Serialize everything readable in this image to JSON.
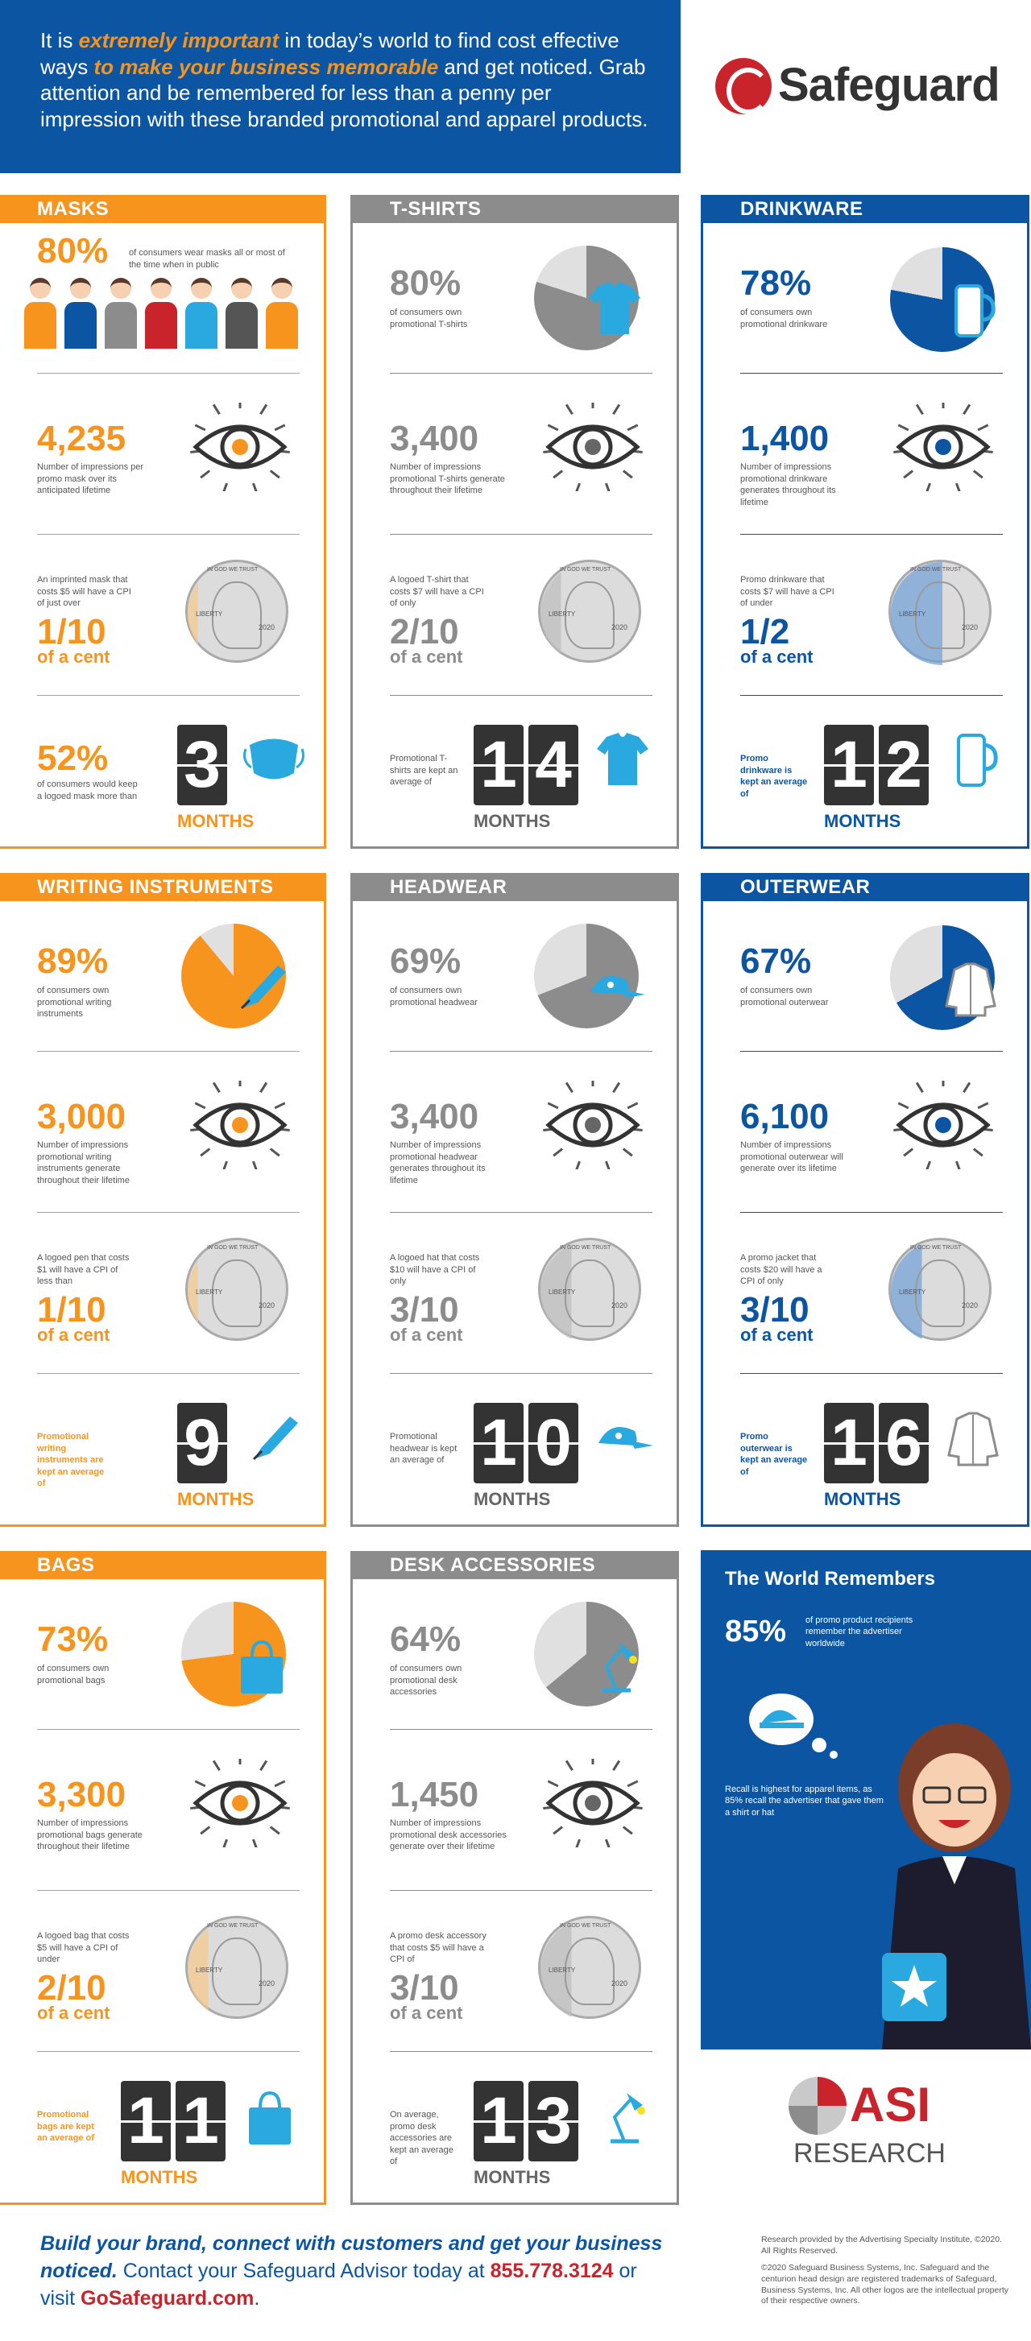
{
  "header": {
    "pre": "It is ",
    "em1": "extremely important",
    "mid1": " in today’s world to find cost effective ways ",
    "em2": "to make your business memorable",
    "post": " and get noticed. Grab attention and be remembered for less than a penny per impression with these branded promotional and apparel products."
  },
  "logo": {
    "name": "Safeguard"
  },
  "colors": {
    "orange": "#f7941d",
    "gray": "#8c8c8c",
    "blue": "#0b55a2",
    "cyan": "#29a9e0"
  },
  "panels": [
    {
      "title": "MASKS",
      "color": "#f7941d",
      "pct": "80%",
      "pct_text": "of consumers wear masks all or most of the time when in public",
      "impressions": "4,235",
      "imp_text": "Number of impressions per promo mask over its anticipated lifetime",
      "cost_text": "An imprinted mask that costs $5 will have a CPI of just over",
      "frac": "1/10",
      "frac_unit": "of a cent",
      "keep_text": "of consumers would keep a logoed mask more than",
      "keep_pct": "52%",
      "digits": [
        "3"
      ],
      "months": "MONTHS",
      "pct_value": 0.8,
      "penny_fill": 0.1,
      "icon": "mask-icon"
    },
    {
      "title": "T-SHIRTS",
      "color": "#8c8c8c",
      "pct": "80%",
      "pct_text": "of consumers own promotional T-shirts",
      "impressions": "3,400",
      "imp_text": "Number of impressions promotional T-shirts generate throughout their lifetime",
      "cost_text": "A logoed T-shirt that costs $7 will have a CPI of only",
      "frac": "2/10",
      "frac_unit": "of a cent",
      "keep_text": "Promotional T-shirts are kept an average of",
      "keep_pct": "",
      "digits": [
        "1",
        "4"
      ],
      "months": "MONTHS",
      "pct_value": 0.8,
      "penny_fill": 0.2,
      "icon": "tshirt-icon"
    },
    {
      "title": "DRINKWARE",
      "color": "#0b55a2",
      "pct": "78%",
      "pct_text": "of consumers own promotional drinkware",
      "impressions": "1,400",
      "imp_text": "Number of impressions promotional drinkware generates throughout its lifetime",
      "cost_text": "Promo drinkware that costs $7 will have a CPI of under",
      "frac": "1/2",
      "frac_unit": "of a cent",
      "keep_text": "Promo drinkware is kept an average of",
      "keep_pct": "",
      "digits": [
        "1",
        "2"
      ],
      "months": "MONTHS",
      "pct_value": 0.78,
      "penny_fill": 0.5,
      "icon": "tumbler-icon"
    },
    {
      "title": "WRITING INSTRUMENTS",
      "color": "#f7941d",
      "pct": "89%",
      "pct_text": "of consumers own promotional writing instruments",
      "impressions": "3,000",
      "imp_text": "Number of impressions promotional writing instruments generate throughout their lifetime",
      "cost_text": "A logoed pen that costs $1 will have a CPI of less than",
      "frac": "1/10",
      "frac_unit": "of a cent",
      "keep_text": "Promotional writing instruments are kept an average of",
      "keep_pct": "",
      "digits": [
        "9"
      ],
      "months": "MONTHS",
      "pct_value": 0.89,
      "penny_fill": 0.1,
      "icon": "pen-icon"
    },
    {
      "title": "HEADWEAR",
      "color": "#8c8c8c",
      "pct": "69%",
      "pct_text": "of consumers own promotional headwear",
      "impressions": "3,400",
      "imp_text": "Number of impressions promotional headwear generates throughout its lifetime",
      "cost_text": "A logoed hat that costs $10 will have a CPI of only",
      "frac": "3/10",
      "frac_unit": "of a cent",
      "keep_text": "Promotional headwear is kept an average of",
      "keep_pct": "",
      "digits": [
        "1",
        "0"
      ],
      "months": "MONTHS",
      "pct_value": 0.69,
      "penny_fill": 0.3,
      "icon": "cap-icon"
    },
    {
      "title": "OUTERWEAR",
      "color": "#0b55a2",
      "pct": "67%",
      "pct_text": "of consumers own promotional outerwear",
      "impressions": "6,100",
      "imp_text": "Number of impressions promotional outerwear will generate over its lifetime",
      "cost_text": "A promo jacket that costs $20 will have a CPI of only",
      "frac": "3/10",
      "frac_unit": "of a cent",
      "keep_text": "Promo outerwear is kept an average of",
      "keep_pct": "",
      "digits": [
        "1",
        "6"
      ],
      "months": "MONTHS",
      "pct_value": 0.67,
      "penny_fill": 0.3,
      "icon": "jacket-icon"
    },
    {
      "title": "BAGS",
      "color": "#f7941d",
      "pct": "73%",
      "pct_text": "of consumers own promotional bags",
      "impressions": "3,300",
      "imp_text": "Number of impressions promotional bags generate throughout their lifetime",
      "cost_text": "A logoed bag that costs $5 will have a CPI of under",
      "frac": "2/10",
      "frac_unit": "of a cent",
      "keep_text": "Promotional bags are kept an average of",
      "keep_pct": "",
      "digits": [
        "1",
        "1"
      ],
      "months": "MONTHS",
      "pct_value": 0.73,
      "penny_fill": 0.2,
      "icon": "bag-icon"
    },
    {
      "title": "DESK ACCESSORIES",
      "color": "#8c8c8c",
      "pct": "64%",
      "pct_text": "of consumers own promotional desk accessories",
      "impressions": "1,450",
      "imp_text": "Number of impressions promotional desk accessories generate over their lifetime",
      "cost_text": "A promo desk accessory that costs $5 will have a CPI of",
      "frac": "3/10",
      "frac_unit": "of a cent",
      "keep_text": "On average, promo desk accessories are kept an average of",
      "keep_pct": "",
      "digits": [
        "1",
        "3"
      ],
      "months": "MONTHS",
      "pct_value": 0.64,
      "penny_fill": 0.3,
      "icon": "lamp-icon"
    }
  ],
  "penny": {
    "top": "IN GOD WE TRUST",
    "liberty": "LIBERTY",
    "year": "2020"
  },
  "world": {
    "title": "The World Remembers",
    "pct": "85%",
    "pct_text": "of promo product recipients remember the advertiser worldwide",
    "recall": "Recall is highest for apparel items, as 85% recall the advertiser that gave them a shirt or hat"
  },
  "asi": {
    "name": "ASI",
    "sub": "RESEARCH"
  },
  "footer": {
    "l1": "Build your brand, connect with customers and get your business noticed.",
    "l2": " Contact your Safeguard Advisor today at ",
    "phone": "855.778.3124",
    "l3": " or visit ",
    "site": "GoSafeguard.com",
    "l4": "."
  },
  "fine": {
    "p1": "Research provided by the Advertising Specialty Institute, ©2020. All Rights Reserved.",
    "p2": "©2020 Safeguard Business Systems, Inc. Safeguard and the centurion head design are registered trademarks of Safeguard, Business Systems, Inc. All other logos are the intellectual property of their respective owners."
  }
}
